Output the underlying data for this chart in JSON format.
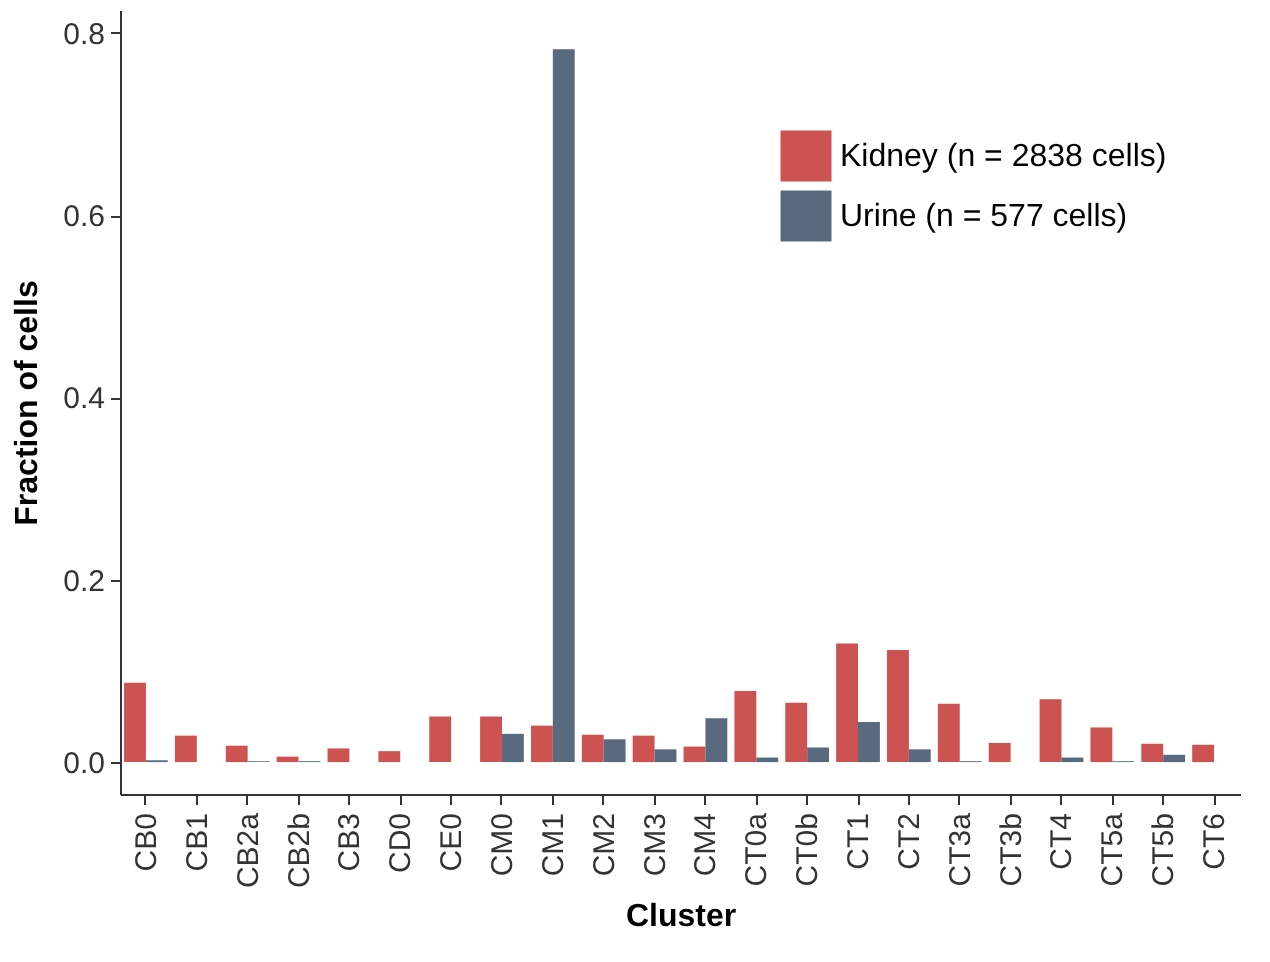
{
  "chart_data": {
    "type": "bar",
    "xlabel": "Cluster",
    "ylabel": "Fraction of cells",
    "categories": [
      "CB0",
      "CB1",
      "CB2a",
      "CB2b",
      "CB3",
      "CD0",
      "CE0",
      "CM0",
      "CM1",
      "CM2",
      "CM3",
      "CM4",
      "CT0a",
      "CT0b",
      "CT1",
      "CT2",
      "CT3a",
      "CT3b",
      "CT4",
      "CT5a",
      "CT5b",
      "CT6"
    ],
    "series": [
      {
        "name": "Kidney (n = 2838 cells)",
        "color": "#cd5352",
        "values": [
          0.087,
          0.029,
          0.018,
          0.006,
          0.015,
          0.012,
          0.05,
          0.05,
          0.04,
          0.03,
          0.029,
          0.017,
          0.078,
          0.065,
          0.13,
          0.123,
          0.064,
          0.021,
          0.069,
          0.038,
          0.02,
          0.019
        ]
      },
      {
        "name": "Urine (n = 577 cells)",
        "color": "#5a6a7e",
        "values": [
          0.002,
          null,
          0.001,
          0.001,
          null,
          null,
          null,
          0.031,
          0.782,
          0.025,
          0.014,
          0.048,
          0.005,
          0.016,
          0.044,
          0.014,
          0.001,
          null,
          0.005,
          0.001,
          0.008,
          null
        ]
      }
    ],
    "ylim": [
      -0.035,
      0.825
    ],
    "yticks": [
      {
        "value": 0,
        "label": "0.0"
      },
      0.2,
      0.4,
      0.6,
      0.8
    ],
    "grid": false,
    "legend": "top right"
  }
}
